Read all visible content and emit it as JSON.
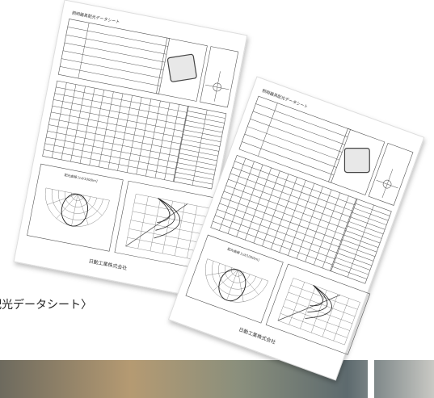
{
  "caption": "配光データシート〉",
  "sheets": [
    {
      "title": "照明器具配光データシート",
      "chart_label": "配光曲線 [cd/1000lm]",
      "company": "日動工業株式会社"
    },
    {
      "title": "照明器具配光データシート",
      "chart_label": "配光曲線 [cd/1000lm]",
      "company": "日動工業株式会社"
    }
  ]
}
